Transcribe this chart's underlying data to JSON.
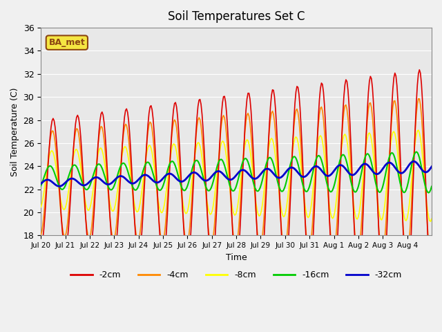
{
  "title": "Soil Temperatures Set C",
  "xlabel": "Time",
  "ylabel": "Soil Temperature (C)",
  "ylim": [
    18,
    36
  ],
  "yticks": [
    18,
    20,
    22,
    24,
    26,
    28,
    30,
    32,
    34,
    36
  ],
  "legend_label": "BA_met",
  "line_colors": {
    "-2cm": "#dd0000",
    "-4cm": "#ff8800",
    "-8cm": "#ffff00",
    "-16cm": "#00cc00",
    "-32cm": "#0000cc"
  },
  "tick_labels": [
    "Jul 20",
    "Jul 21",
    "Jul 22",
    "Jul 23",
    "Jul 24",
    "Jul 25",
    "Jul 26",
    "Jul 27",
    "Jul 28",
    "Jul 29",
    "Jul 30",
    "Jul 31",
    "Aug 1",
    "Aug 2",
    "Aug 3",
    "Aug 4"
  ],
  "fig_bg": "#f0f0f0",
  "plot_bg": "#e8e8e8"
}
